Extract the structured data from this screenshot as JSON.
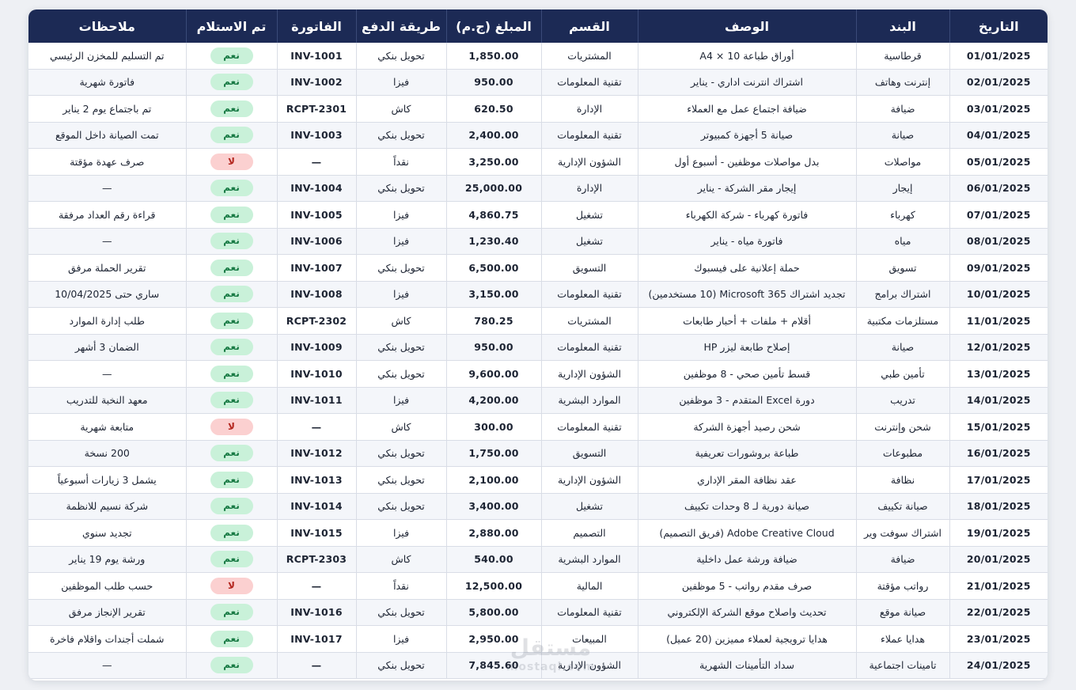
{
  "headers": {
    "date": "التاريخ",
    "item": "البند",
    "description": "الوصف",
    "department": "القسم",
    "amount": "المبلغ (ج.م)",
    "payment": "طريقة الدفع",
    "invoice": "الفاتورة",
    "received": "تم الاستلام",
    "notes": "ملاحظات"
  },
  "rows": [
    {
      "date": "01/01/2025",
      "item": "قرطاسية",
      "description": "أوراق طباعة A4 × 10",
      "department": "المشتريات",
      "amount": "1,850.00",
      "payment": "تحويل بنكي",
      "invoice": "INV-1001",
      "received": "نعم",
      "received_ok": true,
      "notes": "تم التسليم للمخزن الرئيسي"
    },
    {
      "date": "02/01/2025",
      "item": "إنترنت وهاتف",
      "description": "اشتراك انترنت اداري - يناير",
      "department": "تقنية المعلومات",
      "amount": "950.00",
      "payment": "فيزا",
      "invoice": "INV-1002",
      "received": "نعم",
      "received_ok": true,
      "notes": "فاتورة شهرية"
    },
    {
      "date": "03/01/2025",
      "item": "ضيافة",
      "description": "ضيافة اجتماع عمل مع العملاء",
      "department": "الإدارة",
      "amount": "620.50",
      "payment": "كاش",
      "invoice": "RCPT-2301",
      "received": "نعم",
      "received_ok": true,
      "notes": "تم باجتماع يوم 2 يناير"
    },
    {
      "date": "04/01/2025",
      "item": "صيانة",
      "description": "صيانة 5 أجهزة كمبيوتر",
      "department": "تقنية المعلومات",
      "amount": "2,400.00",
      "payment": "تحويل بنكي",
      "invoice": "INV-1003",
      "received": "نعم",
      "received_ok": true,
      "notes": "تمت الصيانة داخل الموقع"
    },
    {
      "date": "05/01/2025",
      "item": "مواصلات",
      "description": "بدل مواصلات موظفين - أسبوع أول",
      "department": "الشؤون الإدارية",
      "amount": "3,250.00",
      "payment": "نقداً",
      "invoice": "—",
      "received": "لا",
      "received_ok": false,
      "notes": "صرف عهدة مؤقتة"
    },
    {
      "date": "06/01/2025",
      "item": "إيجار",
      "description": "إيجار مقر الشركة - يناير",
      "department": "الإدارة",
      "amount": "25,000.00",
      "payment": "تحويل بنكي",
      "invoice": "INV-1004",
      "received": "نعم",
      "received_ok": true,
      "notes": "—"
    },
    {
      "date": "07/01/2025",
      "item": "كهرباء",
      "description": "فاتورة كهرباء - شركة الكهرباء",
      "department": "تشغيل",
      "amount": "4,860.75",
      "payment": "فيزا",
      "invoice": "INV-1005",
      "received": "نعم",
      "received_ok": true,
      "notes": "قراءة رقم العداد مرفقة"
    },
    {
      "date": "08/01/2025",
      "item": "مياه",
      "description": "فاتورة مياه - يناير",
      "department": "تشغيل",
      "amount": "1,230.40",
      "payment": "فيزا",
      "invoice": "INV-1006",
      "received": "نعم",
      "received_ok": true,
      "notes": "—"
    },
    {
      "date": "09/01/2025",
      "item": "تسويق",
      "description": "حملة إعلانية على فيسبوك",
      "department": "التسويق",
      "amount": "6,500.00",
      "payment": "تحويل بنكي",
      "invoice": "INV-1007",
      "received": "نعم",
      "received_ok": true,
      "notes": "تقرير الحملة مرفق"
    },
    {
      "date": "10/01/2025",
      "item": "اشتراك برامج",
      "description": "تجديد اشتراك Microsoft 365 (10 مستخدمين)",
      "department": "تقنية المعلومات",
      "amount": "3,150.00",
      "payment": "فيزا",
      "invoice": "INV-1008",
      "received": "نعم",
      "received_ok": true,
      "notes": "ساري حتى 10/04/2025"
    },
    {
      "date": "11/01/2025",
      "item": "مستلزمات مكتبية",
      "description": "أقلام + ملفات + أحبار طابعات",
      "department": "المشتريات",
      "amount": "780.25",
      "payment": "كاش",
      "invoice": "RCPT-2302",
      "received": "نعم",
      "received_ok": true,
      "notes": "طلب إدارة الموارد"
    },
    {
      "date": "12/01/2025",
      "item": "صيانة",
      "description": "إصلاح طابعة ليزر HP",
      "department": "تقنية المعلومات",
      "amount": "950.00",
      "payment": "تحويل بنكي",
      "invoice": "INV-1009",
      "received": "نعم",
      "received_ok": true,
      "notes": "الضمان 3 أشهر"
    },
    {
      "date": "13/01/2025",
      "item": "تأمين طبي",
      "description": "قسط تأمين صحي - 8 موظفين",
      "department": "الشؤون الإدارية",
      "amount": "9,600.00",
      "payment": "تحويل بنكي",
      "invoice": "INV-1010",
      "received": "نعم",
      "received_ok": true,
      "notes": "—"
    },
    {
      "date": "14/01/2025",
      "item": "تدريب",
      "description": "دورة Excel المتقدم - 3 موظفين",
      "department": "الموارد البشرية",
      "amount": "4,200.00",
      "payment": "فيزا",
      "invoice": "INV-1011",
      "received": "نعم",
      "received_ok": true,
      "notes": "معهد النخبة للتدريب"
    },
    {
      "date": "15/01/2025",
      "item": "شحن وإنترنت",
      "description": "شحن رصيد أجهزة الشركة",
      "department": "تقنية المعلومات",
      "amount": "300.00",
      "payment": "كاش",
      "invoice": "—",
      "received": "لا",
      "received_ok": false,
      "notes": "متابعة شهرية"
    },
    {
      "date": "16/01/2025",
      "item": "مطبوعات",
      "description": "طباعة بروشورات تعريفية",
      "department": "التسويق",
      "amount": "1,750.00",
      "payment": "تحويل بنكي",
      "invoice": "INV-1012",
      "received": "نعم",
      "received_ok": true,
      "notes": "200 نسخة"
    },
    {
      "date": "17/01/2025",
      "item": "نظافة",
      "description": "عقد نظافة المقر الإداري",
      "department": "الشؤون الإدارية",
      "amount": "2,100.00",
      "payment": "تحويل بنكي",
      "invoice": "INV-1013",
      "received": "نعم",
      "received_ok": true,
      "notes": "يشمل 3 زيارات أسبوعياً"
    },
    {
      "date": "18/01/2025",
      "item": "صيانة تكييف",
      "description": "صيانة دورية لـ 8 وحدات تكييف",
      "department": "تشغيل",
      "amount": "3,400.00",
      "payment": "تحويل بنكي",
      "invoice": "INV-1014",
      "received": "نعم",
      "received_ok": true,
      "notes": "شركة نسيم للانظمة"
    },
    {
      "date": "19/01/2025",
      "item": "اشتراك سوفت وير",
      "description": "Adobe Creative Cloud (فريق التصميم)",
      "department": "التصميم",
      "amount": "2,880.00",
      "payment": "فيزا",
      "invoice": "INV-1015",
      "received": "نعم",
      "received_ok": true,
      "notes": "تجديد سنوي"
    },
    {
      "date": "20/01/2025",
      "item": "ضيافة",
      "description": "ضيافة ورشة عمل داخلية",
      "department": "الموارد البشرية",
      "amount": "540.00",
      "payment": "كاش",
      "invoice": "RCPT-2303",
      "received": "نعم",
      "received_ok": true,
      "notes": "ورشة يوم 19 يناير"
    },
    {
      "date": "21/01/2025",
      "item": "رواتب مؤقتة",
      "description": "صرف مقدم رواتب - 5 موظفين",
      "department": "المالية",
      "amount": "12,500.00",
      "payment": "نقداً",
      "invoice": "—",
      "received": "لا",
      "received_ok": false,
      "notes": "حسب طلب الموظفين"
    },
    {
      "date": "22/01/2025",
      "item": "صيانة موقع",
      "description": "تحديث واصلاح موقع الشركة الإلكتروني",
      "department": "تقنية المعلومات",
      "amount": "5,800.00",
      "payment": "تحويل بنكي",
      "invoice": "INV-1016",
      "received": "نعم",
      "received_ok": true,
      "notes": "تقرير الإنجاز مرفق"
    },
    {
      "date": "23/01/2025",
      "item": "هدايا عملاء",
      "description": "هدايا ترويجية لعملاء مميزين (20 عميل)",
      "department": "المبيعات",
      "amount": "2,950.00",
      "payment": "فيزا",
      "invoice": "INV-1017",
      "received": "نعم",
      "received_ok": true,
      "notes": "شملت أجندات واقلام فاخرة"
    },
    {
      "date": "24/01/2025",
      "item": "تامينات اجتماعية",
      "description": "سداد التأمينات الشهرية",
      "department": "الشؤون الإدارية",
      "amount": "7,845.60",
      "payment": "تحويل بنكي",
      "invoice": "—",
      "received": "نعم",
      "received_ok": true,
      "notes": "—"
    }
  ],
  "colors": {
    "header_bg": "#1c2a55",
    "yes_bg": "#c9f1d9",
    "yes_text": "#187a44",
    "no_bg": "#fbd0d0",
    "no_text": "#b3261e"
  },
  "watermark": {
    "text": "مستقل",
    "sub": "mostaql.com"
  }
}
